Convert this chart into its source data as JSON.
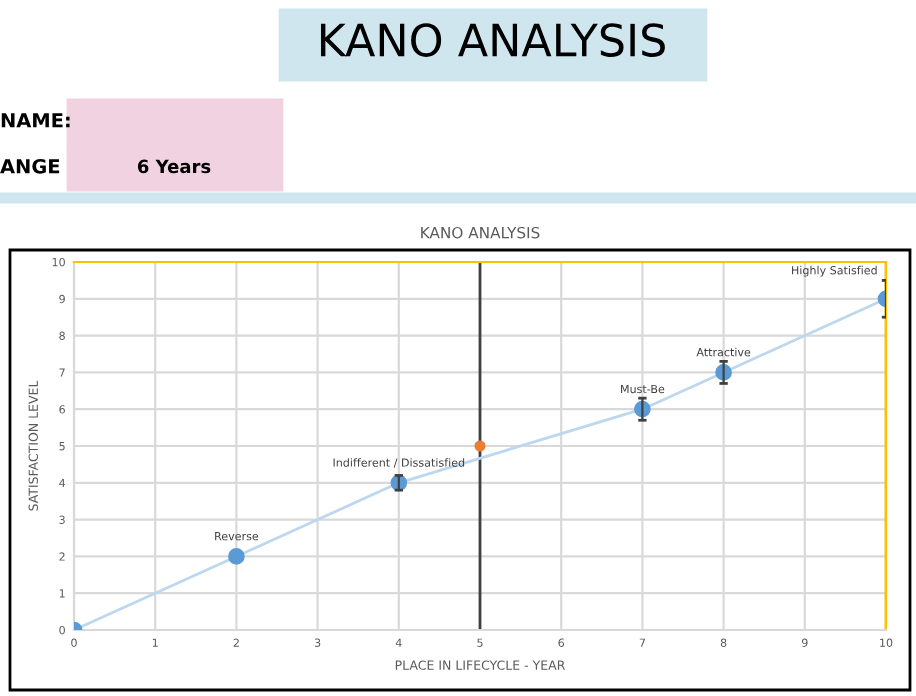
{
  "chart_data": {
    "type": "line",
    "title": "KANO ANALYSIS",
    "xlabel": "PLACE IN LIFECYCLE - YEAR",
    "ylabel": "SATISFACTION LEVEL",
    "annotations": [
      "KANO ANALYSIS",
      "NAME:",
      "ANGE",
      "6 Years",
      {
        "text": "Reverse",
        "x": 2,
        "y": 2
      },
      {
        "text": "Indifferent / Dissatisfied",
        "x": 4,
        "y": 4
      },
      {
        "text": "Must-Be",
        "x": 7,
        "y": 6
      },
      {
        "text": "Attractive",
        "x": 8,
        "y": 7
      },
      {
        "text": "Highly Satisfied",
        "x": 10,
        "y": 9
      }
    ],
    "series": [
      {
        "color": "#5b9bd5",
        "x": [
          0,
          2,
          4,
          7,
          8,
          10
        ],
        "values": [
          0,
          2,
          4,
          6,
          7,
          9
        ],
        "errors": [
          null,
          null,
          0.2,
          0.3,
          0.3,
          0.5
        ],
        "marker": "circle"
      },
      {
        "type": "scatter",
        "color": "#ed7d31",
        "x": [
          5
        ],
        "values": [
          5
        ],
        "marker": "circle"
      }
    ],
    "ref_lines": [
      {
        "axis": "x",
        "value": 5,
        "color": "#404040",
        "line_style": "solid"
      },
      {
        "axis": "x",
        "value": 10,
        "color": "#ffc000",
        "line_style": "solid"
      }
    ],
    "xlim": [
      0,
      10
    ],
    "xticks": [
      0,
      1,
      2,
      3,
      4,
      5,
      6,
      7,
      8,
      9,
      10
    ],
    "ylim": [
      0,
      10
    ],
    "yticks": [
      0,
      1,
      2,
      3,
      4,
      5,
      6,
      7,
      8,
      9,
      10
    ],
    "grid": true,
    "legend": false
  }
}
